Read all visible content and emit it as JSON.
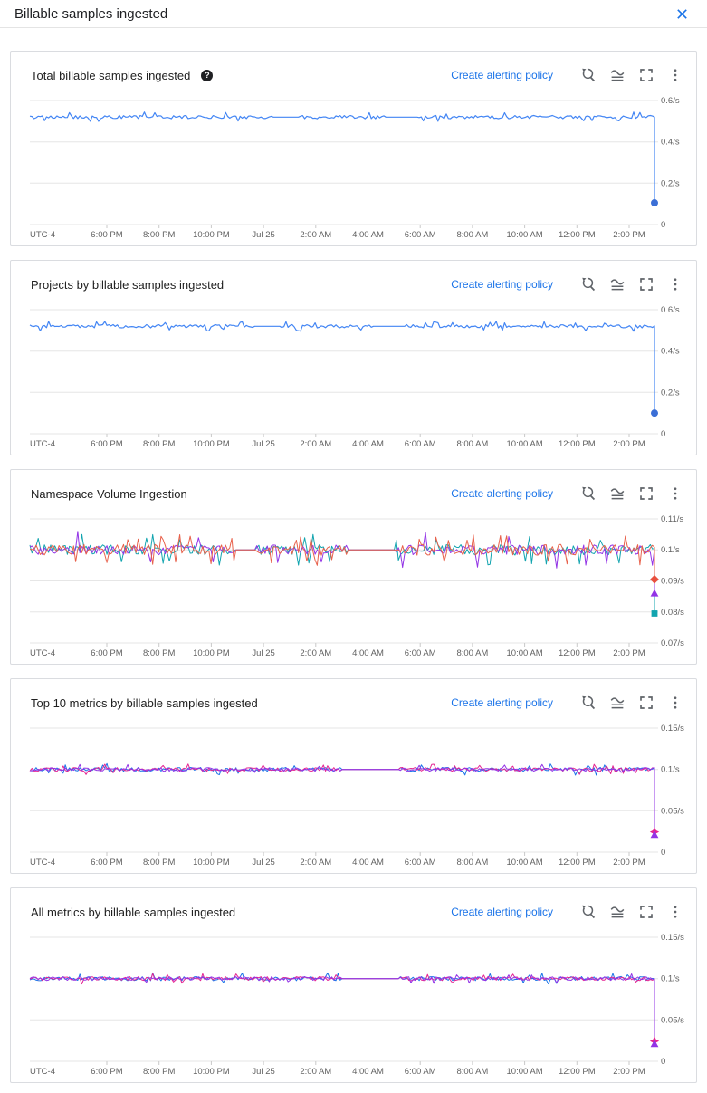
{
  "window": {
    "title": "Billable samples ingested"
  },
  "labels": {
    "create_alerting_policy": "Create alerting policy",
    "help_icon_glyph": "?"
  },
  "icons": {
    "header": [
      "close-icon"
    ],
    "card_actions": [
      "zoom-reset-icon",
      "metrics-explorer-icon",
      "fullscreen-icon",
      "more-options-icon"
    ]
  },
  "colors": {
    "link_blue": "#1a73e8",
    "close_blue": "#1a73e8",
    "icon_gray": "#5f6368",
    "axis_text": "#616161",
    "gridline": "#e6e6e6"
  },
  "x_axis": {
    "ticks": [
      "UTC-4",
      "6:00 PM",
      "8:00 PM",
      "10:00 PM",
      "Jul 25",
      "2:00 AM",
      "4:00 AM",
      "6:00 AM",
      "8:00 AM",
      "10:00 AM",
      "12:00 PM",
      "2:00 PM"
    ]
  },
  "chart_data": [
    {
      "type": "line",
      "title": "Total billable samples ingested",
      "has_help": true,
      "y_ticks": [
        {
          "label": "0.6/s",
          "value": 0.6
        },
        {
          "label": "0.4/s",
          "value": 0.4
        },
        {
          "label": "0.2/s",
          "value": 0.2
        },
        {
          "label": "0",
          "value": 0
        }
      ],
      "y_range": [
        0,
        0.6
      ],
      "grid": true,
      "flat_intervals": [
        [
          0.39,
          0.43
        ],
        [
          0.57,
          0.62
        ]
      ],
      "series": [
        {
          "name": "series-1",
          "color": "#4285f4",
          "width": 1.2,
          "baseline": 0.52,
          "noise": 0.008,
          "spike": 0.024,
          "spike_rate": 0.07,
          "end_value": 0.105,
          "marker": "circle",
          "marker_color": "#3b6fd6"
        }
      ]
    },
    {
      "type": "line",
      "title": "Projects by billable samples ingested",
      "has_help": false,
      "y_ticks": [
        {
          "label": "0.6/s",
          "value": 0.6
        },
        {
          "label": "0.4/s",
          "value": 0.4
        },
        {
          "label": "0.2/s",
          "value": 0.2
        },
        {
          "label": "0",
          "value": 0
        }
      ],
      "y_range": [
        0,
        0.6
      ],
      "grid": true,
      "flat_intervals": [
        [
          0.36,
          0.4
        ],
        [
          0.55,
          0.6
        ]
      ],
      "series": [
        {
          "name": "series-1",
          "color": "#4285f4",
          "width": 1.2,
          "baseline": 0.52,
          "noise": 0.008,
          "spike": 0.024,
          "spike_rate": 0.07,
          "end_value": 0.1,
          "marker": "circle",
          "marker_color": "#3b6fd6"
        }
      ]
    },
    {
      "type": "line",
      "title": "Namespace Volume Ingestion",
      "has_help": false,
      "y_ticks": [
        {
          "label": "0.11/s",
          "value": 0.11
        },
        {
          "label": "0.1/s",
          "value": 0.1
        },
        {
          "label": "0.09/s",
          "value": 0.09
        },
        {
          "label": "0.08/s",
          "value": 0.08
        },
        {
          "label": "0.07/s",
          "value": 0.07
        }
      ],
      "y_range": [
        0.07,
        0.11
      ],
      "grid": true,
      "flat_intervals": [
        [
          0.33,
          0.36
        ],
        [
          0.51,
          0.585
        ]
      ],
      "series": [
        {
          "name": "series-teal",
          "color": "#12a4af",
          "width": 1,
          "baseline": 0.1,
          "noise": 0.0017,
          "spike": 0.005,
          "spike_rate": 0.1,
          "end_value": 0.0795,
          "marker": "square",
          "marker_color": "#12a4af"
        },
        {
          "name": "series-purple",
          "color": "#9334e6",
          "width": 1,
          "baseline": 0.1,
          "noise": 0.0016,
          "spike": 0.006,
          "spike_rate": 0.08,
          "end_value": 0.086,
          "marker": "triangle",
          "marker_color": "#9334e6"
        },
        {
          "name": "series-red",
          "color": "#e8604a",
          "width": 1,
          "baseline": 0.1,
          "noise": 0.0018,
          "spike": 0.005,
          "spike_rate": 0.12,
          "end_value": 0.0905,
          "marker": "diamond",
          "marker_color": "#e8503e"
        }
      ]
    },
    {
      "type": "line",
      "title": "Top 10 metrics by billable samples ingested",
      "has_help": false,
      "y_ticks": [
        {
          "label": "0.15/s",
          "value": 0.15
        },
        {
          "label": "0.1/s",
          "value": 0.1
        },
        {
          "label": "0.05/s",
          "value": 0.05
        },
        {
          "label": "0",
          "value": 0
        }
      ],
      "y_range": [
        0,
        0.15
      ],
      "grid": true,
      "flat_intervals": [
        [
          0.5,
          0.59
        ]
      ],
      "series": [
        {
          "name": "series-blue",
          "color": "#1a73e8",
          "width": 1,
          "baseline": 0.1,
          "noise": 0.0025,
          "spike": 0.007,
          "spike_rate": 0.06,
          "end_value": 0.026,
          "marker": "none",
          "marker_color": "#1a73e8"
        },
        {
          "name": "series-magenta",
          "color": "#e52592",
          "width": 1,
          "baseline": 0.1,
          "noise": 0.0024,
          "spike": 0.0065,
          "spike_rate": 0.06,
          "end_value": 0.0245,
          "marker": "star",
          "marker_color": "#e52592"
        },
        {
          "name": "series-purple",
          "color": "#9334e6",
          "width": 1,
          "baseline": 0.1,
          "noise": 0.0022,
          "spike": 0.006,
          "spike_rate": 0.05,
          "end_value": 0.021,
          "marker": "triangle",
          "marker_color": "#9334e6"
        }
      ]
    },
    {
      "type": "line",
      "title": "All metrics by billable samples ingested",
      "has_help": false,
      "y_ticks": [
        {
          "label": "0.15/s",
          "value": 0.15
        },
        {
          "label": "0.1/s",
          "value": 0.1
        },
        {
          "label": "0.05/s",
          "value": 0.05
        },
        {
          "label": "0",
          "value": 0
        }
      ],
      "y_range": [
        0,
        0.15
      ],
      "grid": true,
      "flat_intervals": [
        [
          0.5,
          0.59
        ]
      ],
      "series": [
        {
          "name": "series-blue",
          "color": "#1a73e8",
          "width": 1,
          "baseline": 0.1,
          "noise": 0.0025,
          "spike": 0.007,
          "spike_rate": 0.06,
          "end_value": 0.026,
          "marker": "none",
          "marker_color": "#1a73e8"
        },
        {
          "name": "series-magenta",
          "color": "#e52592",
          "width": 1,
          "baseline": 0.1,
          "noise": 0.0024,
          "spike": 0.0065,
          "spike_rate": 0.06,
          "end_value": 0.0245,
          "marker": "star",
          "marker_color": "#e52592"
        },
        {
          "name": "series-purple",
          "color": "#9334e6",
          "width": 1,
          "baseline": 0.1,
          "noise": 0.0022,
          "spike": 0.006,
          "spike_rate": 0.05,
          "end_value": 0.021,
          "marker": "triangle",
          "marker_color": "#9334e6"
        }
      ]
    }
  ]
}
